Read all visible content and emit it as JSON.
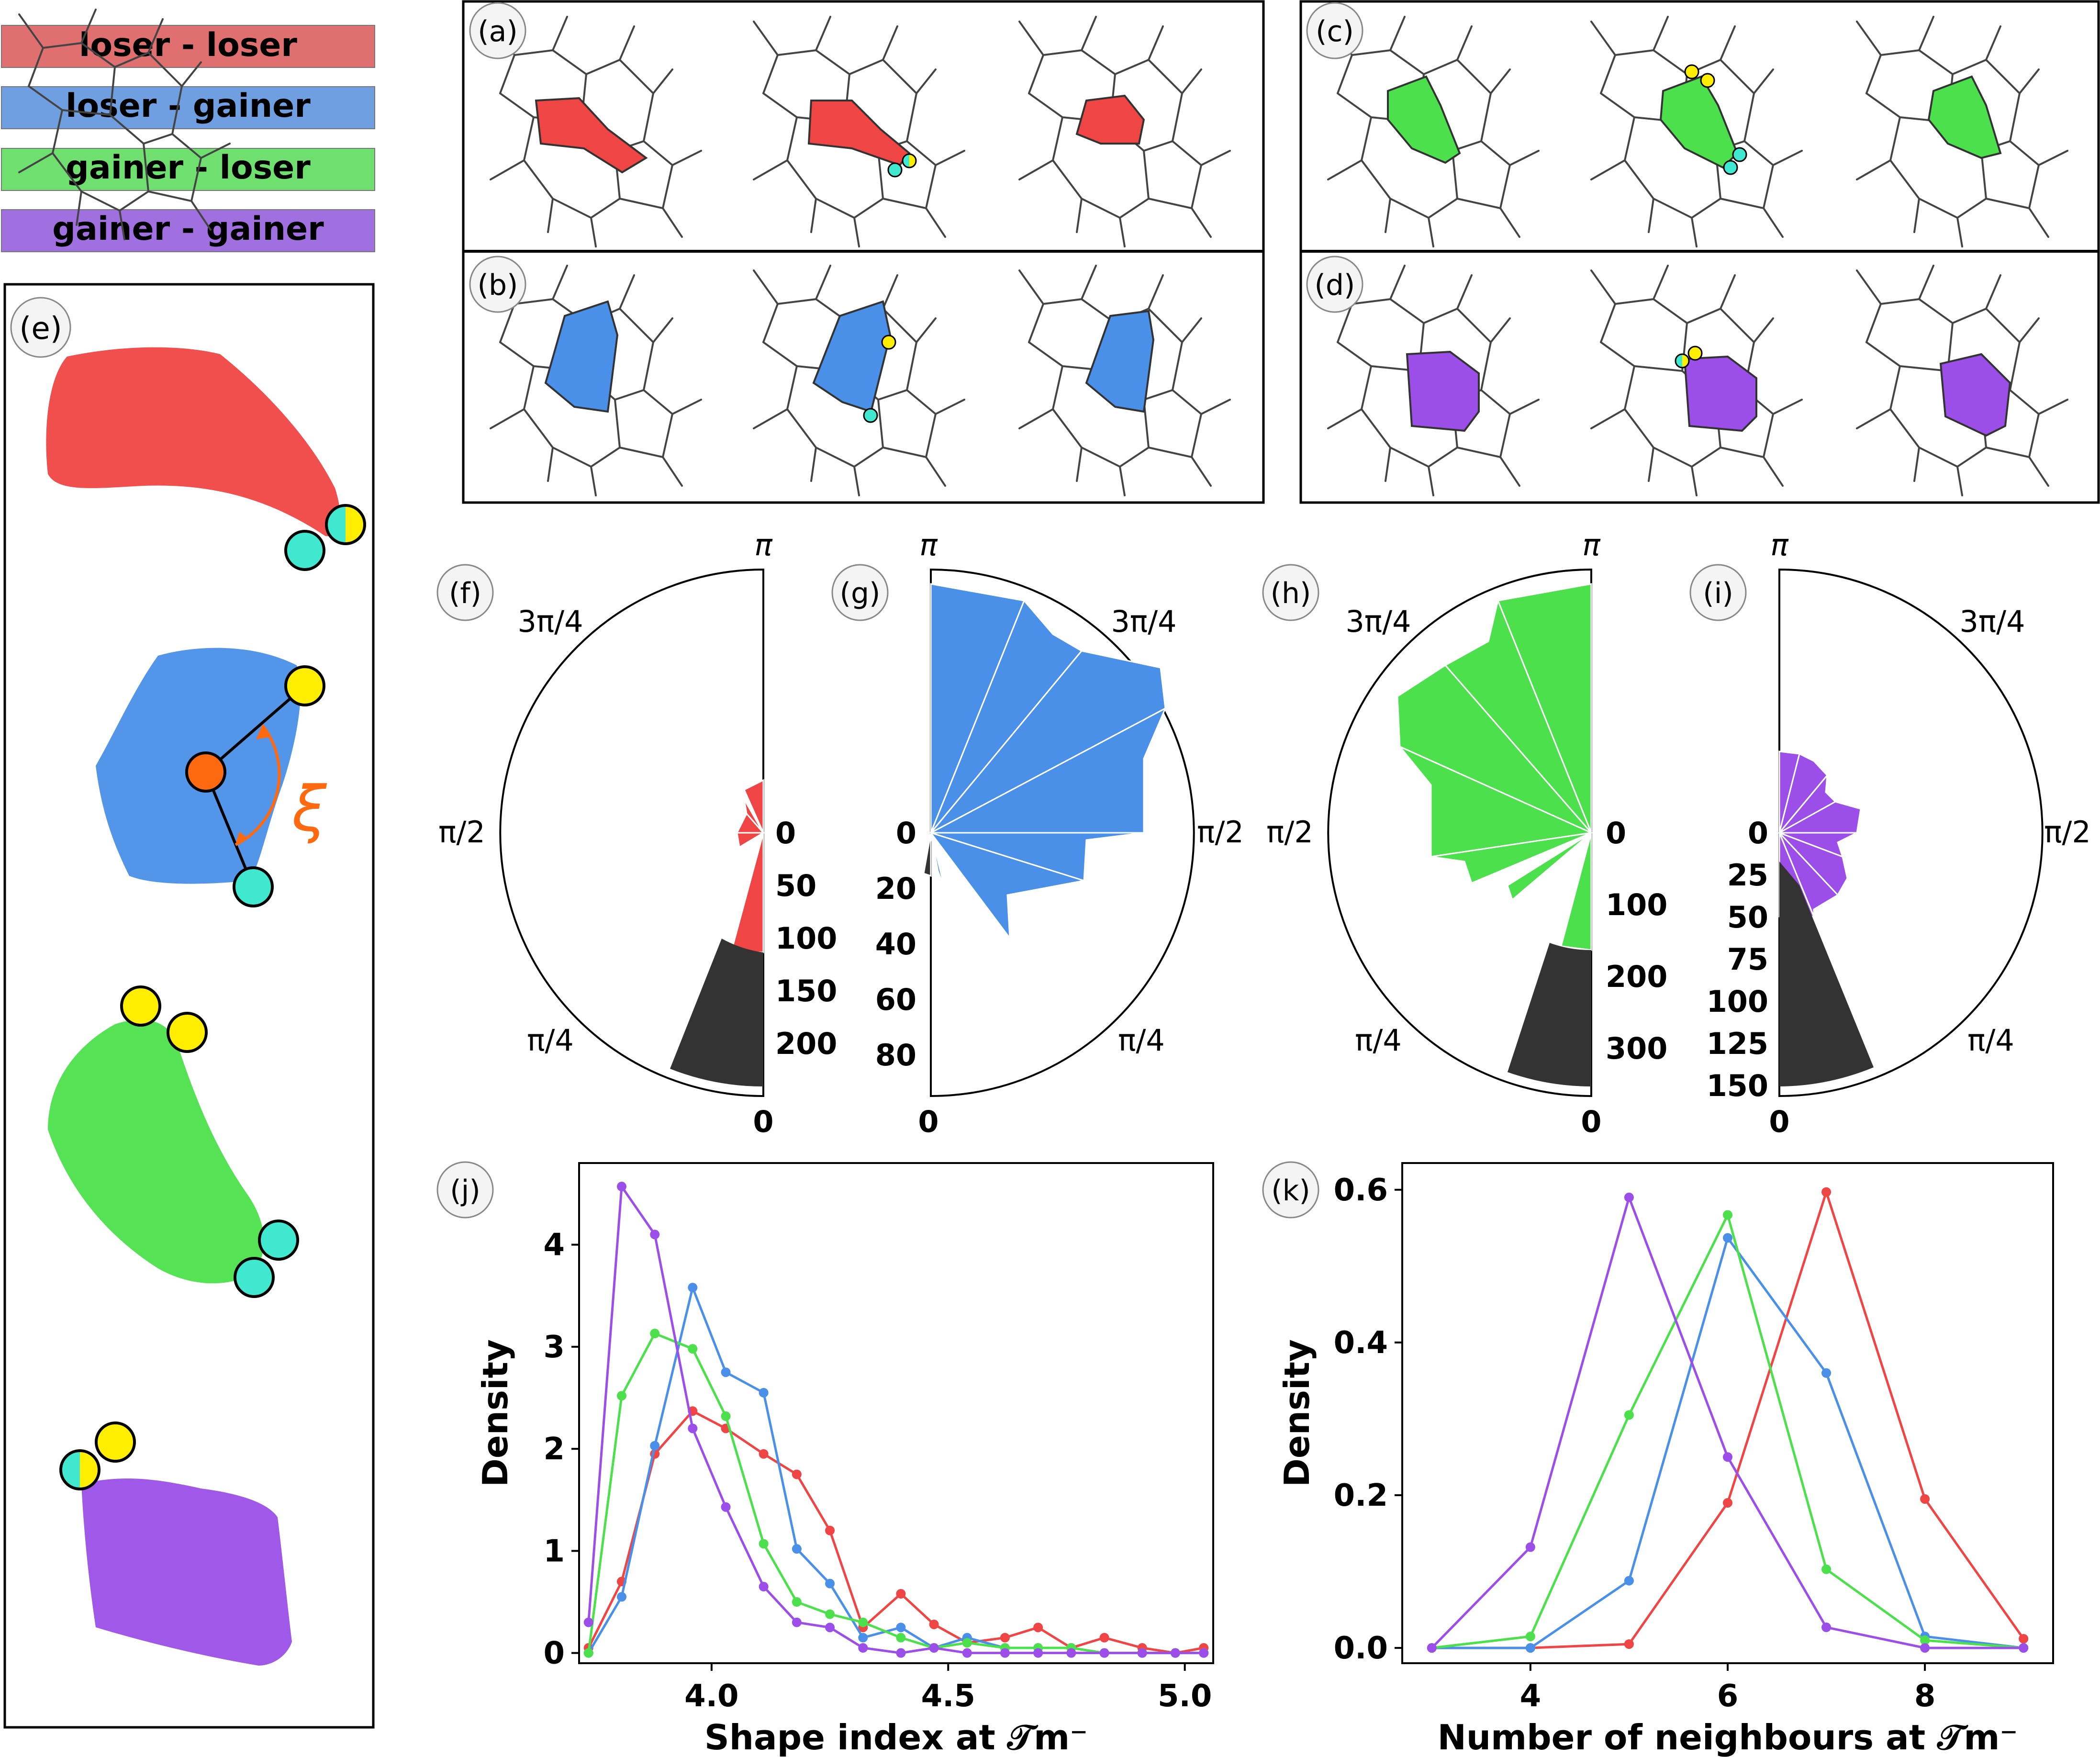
{
  "legend": [
    {
      "label": "loser - loser",
      "color": "#e07070"
    },
    {
      "label": "loser - gainer",
      "color": "#6f9fe0"
    },
    {
      "label": "gainer - loser",
      "color": "#6fe070"
    },
    {
      "label": "gainer - gainer",
      "color": "#a070e0"
    }
  ],
  "colors": {
    "loser_loser": "#f04545",
    "loser_gainer": "#4a90e8",
    "gainer_loser": "#4ce14c",
    "gainer_gainer": "#9b4fe8",
    "yellow": "#ffee00",
    "cyan": "#40e8d0",
    "orange": "#ff6a10",
    "dark": "#333333"
  },
  "panel_labels": {
    "a": "(a)",
    "b": "(b)",
    "c": "(c)",
    "d": "(d)",
    "e": "(e)",
    "f": "(f)",
    "g": "(g)",
    "h": "(h)",
    "i": "(i)",
    "j": "(j)",
    "k": "(k)"
  },
  "xi_symbol": "ξ",
  "polar_angle_labels": {
    "pi": "π",
    "three_pi_4": "3π/4",
    "pi_2": "π/2",
    "pi_4": "π/4",
    "zero": "0"
  },
  "polar_panels": [
    {
      "id": "f",
      "color": "#f04545",
      "rticks": [
        "0",
        "50",
        "100",
        "150",
        "200"
      ]
    },
    {
      "id": "g",
      "color": "#4a90e8",
      "rticks": [
        "0",
        "20",
        "40",
        "60",
        "80"
      ]
    },
    {
      "id": "h",
      "color": "#4ce14c",
      "rticks": [
        "0",
        "100",
        "200",
        "300"
      ]
    },
    {
      "id": "i",
      "color": "#9b4fe8",
      "rticks": [
        "0",
        "25",
        "50",
        "75",
        "100",
        "125",
        "150"
      ]
    }
  ],
  "chart_data": [
    {
      "id": "j",
      "type": "line",
      "xlabel": "Shape index at 𝒯m⁻",
      "ylabel": "Density",
      "xlim": [
        3.72,
        5.06
      ],
      "ylim": [
        -0.1,
        4.8
      ],
      "xticks": [
        "4.0",
        "4.5",
        "5.0"
      ],
      "yticks": [
        "0",
        "1",
        "2",
        "3",
        "4"
      ],
      "x": [
        3.74,
        3.81,
        3.88,
        3.96,
        4.03,
        4.11,
        4.18,
        4.25,
        4.32,
        4.4,
        4.47,
        4.54,
        4.62,
        4.69,
        4.76,
        4.83,
        4.91,
        4.98,
        5.04
      ],
      "series": [
        {
          "name": "loser - loser",
          "color": "#f04545",
          "values": [
            0.05,
            0.7,
            1.95,
            2.37,
            2.2,
            1.95,
            1.75,
            1.2,
            0.25,
            0.58,
            0.28,
            0.1,
            0.15,
            0.25,
            0.05,
            0.15,
            0.05,
            0.0,
            0.05
          ]
        },
        {
          "name": "loser - gainer",
          "color": "#4a90e8",
          "values": [
            0.0,
            0.55,
            2.03,
            3.58,
            2.75,
            2.55,
            1.02,
            0.68,
            0.15,
            0.25,
            0.05,
            0.15,
            0.05,
            0.05,
            0.05,
            0.0,
            0.0,
            0.0,
            0.0
          ]
        },
        {
          "name": "gainer - loser",
          "color": "#4ce14c",
          "values": [
            0.0,
            2.52,
            3.13,
            2.98,
            2.32,
            1.07,
            0.5,
            0.38,
            0.3,
            0.15,
            0.05,
            0.1,
            0.05,
            0.05,
            0.05,
            0.0,
            0.0,
            0.0,
            0.0
          ]
        },
        {
          "name": "gainer - gainer",
          "color": "#9b4fe8",
          "values": [
            0.3,
            4.57,
            4.1,
            2.2,
            1.43,
            0.65,
            0.3,
            0.25,
            0.05,
            0.0,
            0.05,
            0.0,
            0.0,
            0.0,
            0.0,
            0.0,
            0.0,
            0.0,
            0.0
          ]
        }
      ]
    },
    {
      "id": "k",
      "type": "line",
      "xlabel": "Number of neighbours at 𝒯m⁻",
      "ylabel": "Density",
      "xlim": [
        2.7,
        9.3
      ],
      "ylim": [
        -0.02,
        0.635
      ],
      "xticks": [
        "4",
        "6",
        "8"
      ],
      "yticks": [
        "0.0",
        "0.2",
        "0.4",
        "0.6"
      ],
      "x": [
        3,
        4,
        5,
        6,
        7,
        8,
        9
      ],
      "series": [
        {
          "name": "loser - loser",
          "color": "#f04545",
          "values": [
            0.0,
            0.0,
            0.005,
            0.19,
            0.597,
            0.195,
            0.012
          ]
        },
        {
          "name": "loser - gainer",
          "color": "#4a90e8",
          "values": [
            0.0,
            0.0,
            0.088,
            0.537,
            0.36,
            0.015,
            0.0
          ]
        },
        {
          "name": "gainer - loser",
          "color": "#4ce14c",
          "values": [
            0.0,
            0.015,
            0.305,
            0.567,
            0.103,
            0.01,
            0.0
          ]
        },
        {
          "name": "gainer - gainer",
          "color": "#9b4fe8",
          "values": [
            0.0,
            0.132,
            0.59,
            0.25,
            0.027,
            0.0,
            0.0
          ]
        }
      ]
    }
  ]
}
